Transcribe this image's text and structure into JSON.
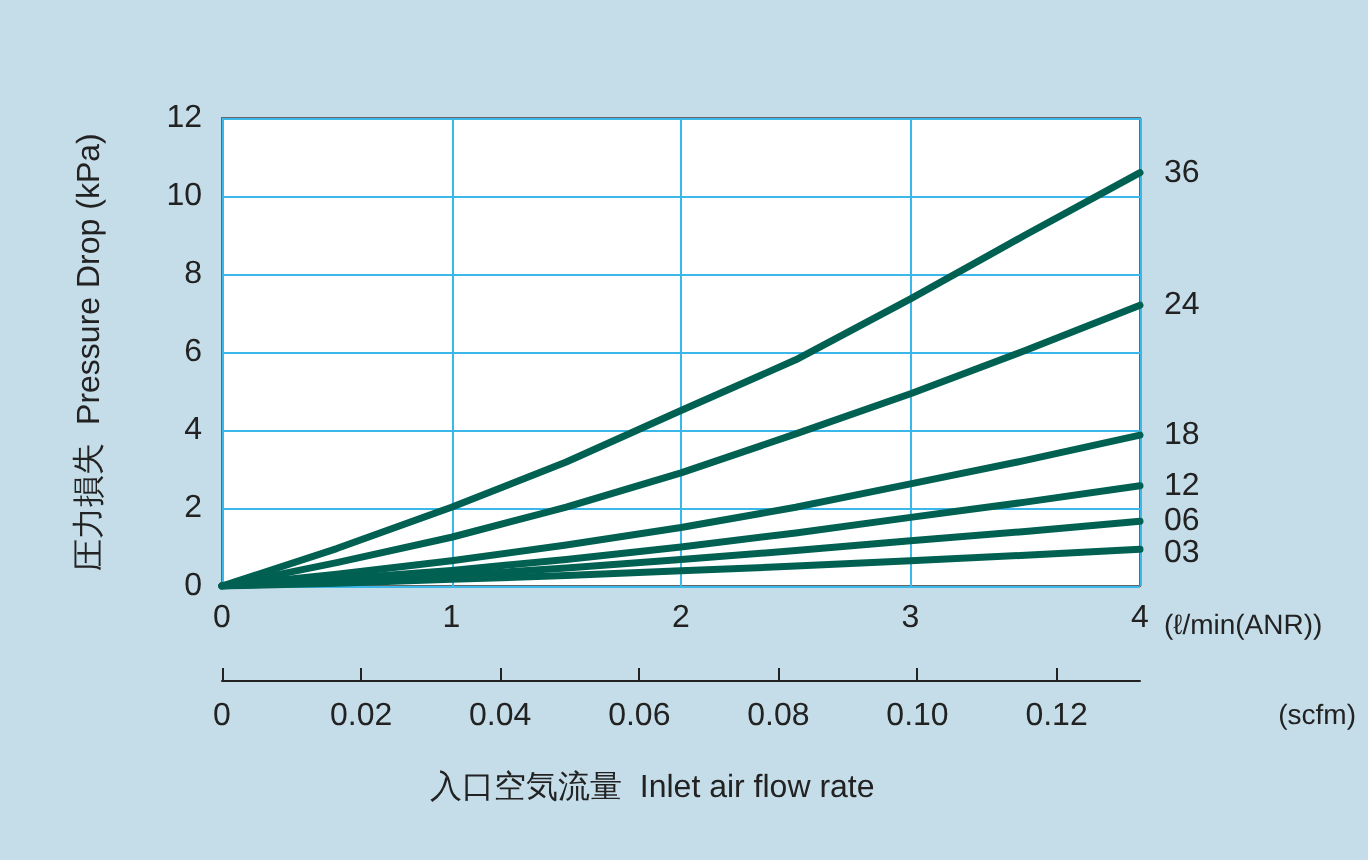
{
  "chart_data": {
    "type": "line",
    "xlabel": "入口空気流量  Inlet air flow rate",
    "ylabel": "圧力損失  Pressure Drop (kPa)",
    "x2label": "(scfm)",
    "annotations": [
      "(ℓ/min(ANR))"
    ],
    "x": [
      0,
      0.5,
      1,
      1.5,
      2,
      2.5,
      3,
      3.5,
      4
    ],
    "xlim": [
      0,
      4
    ],
    "xticks": [
      0,
      1,
      2,
      3,
      4
    ],
    "ylim": [
      0,
      12
    ],
    "yticks": [
      0,
      2,
      4,
      6,
      8,
      10,
      12
    ],
    "x2lim": [
      0,
      0.132
    ],
    "x2ticks": [
      0,
      0.02,
      0.04,
      0.06,
      0.08,
      {
        "value": 0.1,
        "label": "0.10"
      },
      0.12
    ],
    "grid": true,
    "legend": false,
    "marker": "none",
    "line_style": "solid",
    "series": [
      {
        "name": "36",
        "color": "#006152",
        "values": [
          0,
          0.96,
          2.02,
          3.18,
          4.5,
          5.8,
          7.36,
          9.0,
          10.6
        ]
      },
      {
        "name": "24",
        "color": "#006152",
        "values": [
          0,
          0.6,
          1.25,
          2.02,
          2.9,
          3.9,
          4.93,
          6.04,
          7.2
        ]
      },
      {
        "name": "18",
        "color": "#006152",
        "values": [
          0,
          0.3,
          0.65,
          1.05,
          1.5,
          2.02,
          2.62,
          3.22,
          3.87
        ]
      },
      {
        "name": "12",
        "color": "#006152",
        "values": [
          0,
          0.18,
          0.4,
          0.68,
          1.0,
          1.36,
          1.76,
          2.15,
          2.57
        ]
      },
      {
        "name": "06",
        "color": "#006152",
        "values": [
          0,
          0.12,
          0.27,
          0.46,
          0.68,
          0.91,
          1.16,
          1.4,
          1.66
        ]
      },
      {
        "name": "03",
        "color": "#006152",
        "values": [
          0,
          0.07,
          0.17,
          0.27,
          0.39,
          0.51,
          0.65,
          0.79,
          0.94
        ]
      }
    ]
  }
}
